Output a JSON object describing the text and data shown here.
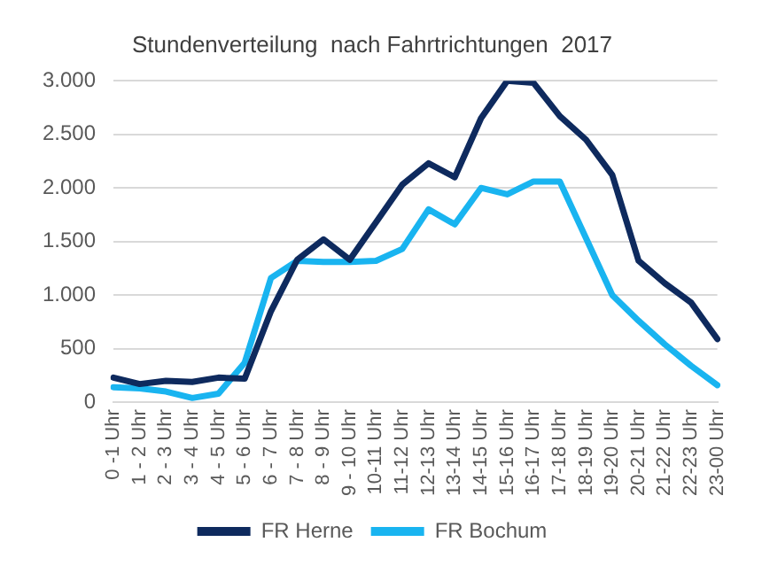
{
  "chart_data": {
    "type": "line",
    "title": "Stundenverteilung  nach Fahrtrichtungen  2017",
    "categories": [
      "0 -1 Uhr",
      "1 - 2 Uhr",
      "2 - 3 Uhr",
      "3 - 4 Uhr",
      "4 - 5 Uhr",
      "5 - 6 Uhr",
      "6 - 7 Uhr",
      "7 - 8 Uhr",
      "8 - 9 Uhr",
      "9 - 10 Uhr",
      "10-11 Uhr",
      "11-12 Uhr",
      "12-13 Uhr",
      "13-14 Uhr",
      "14-15 Uhr",
      "15-16 Uhr",
      "16-17 Uhr",
      "17-18 Uhr",
      "18-19 Uhr",
      "19-20 Uhr",
      "20-21 Uhr",
      "21-22 Uhr",
      "22-23 Uhr",
      "23-00 Uhr"
    ],
    "series": [
      {
        "name": "FR Herne",
        "color": "#0e2a5e",
        "values": [
          230,
          170,
          200,
          190,
          230,
          220,
          850,
          1330,
          1520,
          1330,
          1680,
          2030,
          2230,
          2100,
          2650,
          3000,
          2980,
          2670,
          2450,
          2120,
          1320,
          1110,
          930,
          590
        ]
      },
      {
        "name": "FR Bochum",
        "color": "#19b4f0",
        "values": [
          140,
          130,
          100,
          40,
          80,
          370,
          1160,
          1320,
          1310,
          1310,
          1320,
          1430,
          1800,
          1660,
          2000,
          1940,
          2060,
          2060,
          1530,
          1000,
          760,
          540,
          340,
          160
        ]
      }
    ],
    "ylim": [
      0,
      3000
    ],
    "yticks": [
      0,
      {
        "value": 500,
        "label": "500"
      },
      {
        "value": 1000,
        "label": "1.000"
      },
      {
        "value": 1500,
        "label": "1.500"
      },
      {
        "value": 2000,
        "label": "2.000"
      },
      {
        "value": 2500,
        "label": "2.500"
      },
      {
        "value": 3000,
        "label": "3.000"
      }
    ],
    "grid": "y",
    "legend": "bottom",
    "marker": "none",
    "line_style": "solid"
  }
}
